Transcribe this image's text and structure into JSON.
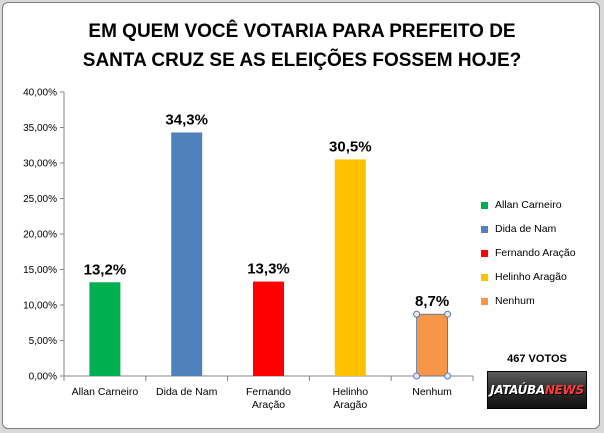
{
  "chart_data": {
    "type": "bar",
    "title_lines": [
      "EM QUEM VOCÊ VOTARIA PARA PREFEITO DE",
      "SANTA CRUZ SE AS ELEIÇÕES FOSSEM HOJE?"
    ],
    "categories": [
      "Allan Carneiro",
      "Dida de Nam",
      "Fernando Aração",
      "Helinho Aragão",
      "Nenhum"
    ],
    "category_label_lines": [
      [
        "Allan Carneiro"
      ],
      [
        "Dida de Nam"
      ],
      [
        "Fernando",
        "Aração"
      ],
      [
        "Helinho",
        "Aragão"
      ],
      [
        "Nenhum"
      ]
    ],
    "values": [
      13.2,
      34.3,
      13.3,
      30.5,
      8.7
    ],
    "data_labels": [
      "13,2%",
      "34,3%",
      "13,3%",
      "30,5%",
      "8,7%"
    ],
    "colors": [
      "#00b050",
      "#4f81bd",
      "#ff0000",
      "#ffc000",
      "#f79646"
    ],
    "ylim": [
      0,
      40
    ],
    "yticks": [
      0,
      5,
      10,
      15,
      20,
      25,
      30,
      35,
      40
    ],
    "ytick_labels": [
      "0,00%",
      "5,00%",
      "10,00%",
      "15,00%",
      "20,00%",
      "25,00%",
      "30,00%",
      "35,00%",
      "40,00%"
    ],
    "selected_bar_index": 4,
    "legend": {
      "position": "right",
      "entries": [
        "Allan Carneiro",
        "Dida de Nam",
        "Fernando Aração",
        "Helinho Aragão",
        "Nenhum"
      ]
    },
    "grid": false
  },
  "votes_label": "467 VOTOS",
  "logo": {
    "main": "JATAÚBA",
    "accent": "NEWS"
  }
}
